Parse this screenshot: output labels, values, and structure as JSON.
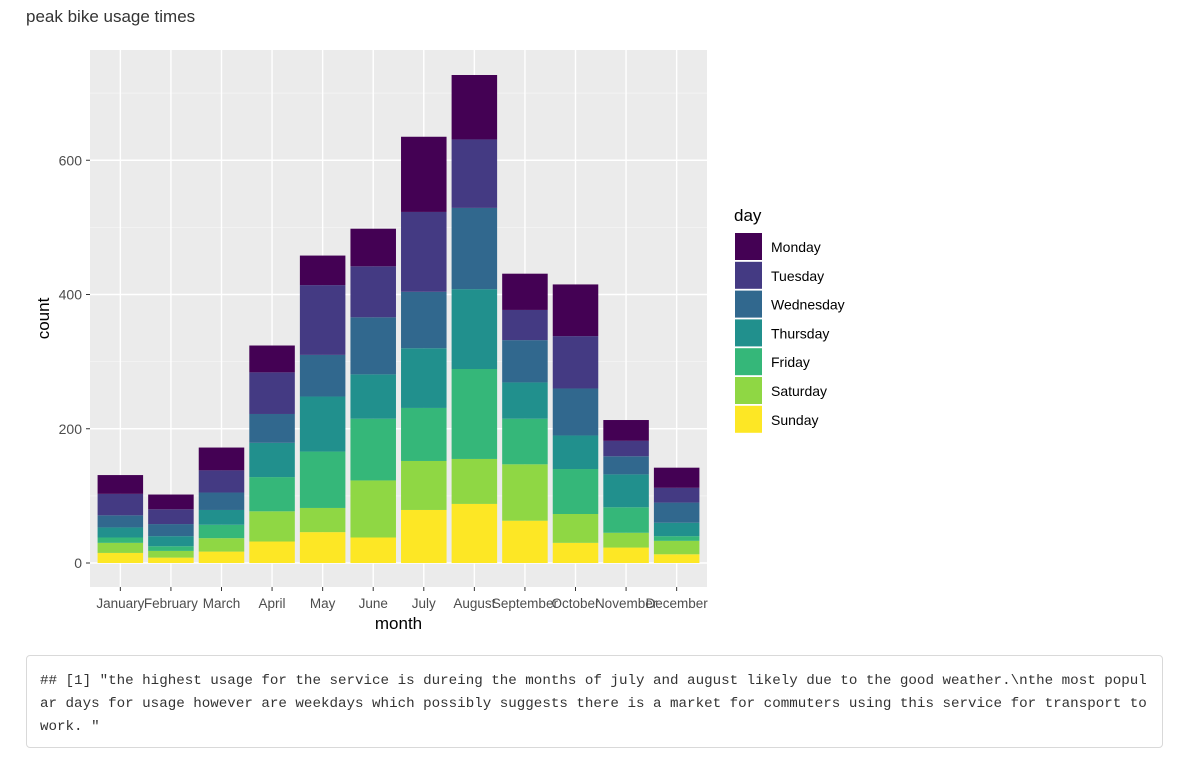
{
  "page": {
    "title": "peak bike usage times",
    "console_output": "## [1] \"the highest usage for the service is dureing the months of july and august likely due to the good weather.\\nthe most popular days for usage however are weekdays which possibly suggests there is a market for commuters using this service for transport to work. \""
  },
  "chart_data": {
    "type": "bar",
    "stacked": true,
    "title": "",
    "xlabel": "month",
    "ylabel": "count",
    "ylim": [
      -35,
      765
    ],
    "yticks": [
      0,
      200,
      400,
      600
    ],
    "grid": true,
    "legend_title": "day",
    "legend_position": "right",
    "categories": [
      "January",
      "February",
      "March",
      "April",
      "May",
      "June",
      "July",
      "August",
      "September",
      "October",
      "November",
      "December"
    ],
    "series": [
      {
        "name": "Sunday",
        "color": "#FDE725",
        "values": [
          15,
          8,
          17,
          32,
          46,
          38,
          79,
          88,
          63,
          30,
          23,
          13
        ]
      },
      {
        "name": "Saturday",
        "color": "#8FD744",
        "values": [
          15,
          10,
          20,
          45,
          36,
          85,
          73,
          67,
          84,
          43,
          22,
          20
        ]
      },
      {
        "name": "Friday",
        "color": "#35B779",
        "values": [
          8,
          7,
          20,
          51,
          84,
          92,
          79,
          134,
          68,
          67,
          38,
          7
        ]
      },
      {
        "name": "Thursday",
        "color": "#21908D",
        "values": [
          15,
          15,
          22,
          51,
          82,
          66,
          89,
          119,
          54,
          50,
          49,
          20
        ]
      },
      {
        "name": "Wednesday",
        "color": "#31688E",
        "values": [
          18,
          18,
          26,
          43,
          62,
          85,
          84,
          121,
          63,
          70,
          27,
          30
        ]
      },
      {
        "name": "Tuesday",
        "color": "#443A83",
        "values": [
          32,
          22,
          33,
          62,
          104,
          76,
          119,
          102,
          45,
          78,
          23,
          22
        ]
      },
      {
        "name": "Monday",
        "color": "#440154",
        "values": [
          28,
          22,
          34,
          40,
          44,
          56,
          112,
          96,
          54,
          77,
          31,
          30
        ]
      }
    ],
    "legend_order": [
      "Monday",
      "Tuesday",
      "Wednesday",
      "Thursday",
      "Friday",
      "Saturday",
      "Sunday"
    ],
    "panel_background": "#EBEBEB"
  }
}
